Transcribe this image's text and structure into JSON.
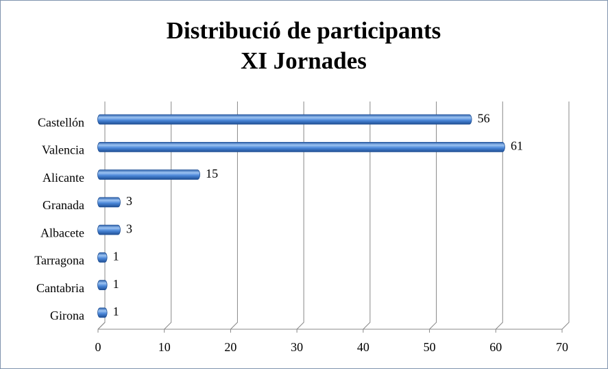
{
  "chart_data": {
    "type": "bar",
    "orientation": "horizontal",
    "title": [
      "Distribució de participants",
      "XI Jornades"
    ],
    "categories": [
      "Castellón",
      "Valencia",
      "Alicante",
      "Granada",
      "Albacete",
      "Tarragona",
      "Cantabria",
      "Girona"
    ],
    "values": [
      56,
      61,
      15,
      3,
      3,
      1,
      1,
      1
    ],
    "color": "#4a86d8",
    "xlim": [
      0,
      70
    ],
    "xticks": [
      0,
      10,
      20,
      30,
      40,
      50,
      60,
      70
    ],
    "grid": true
  }
}
